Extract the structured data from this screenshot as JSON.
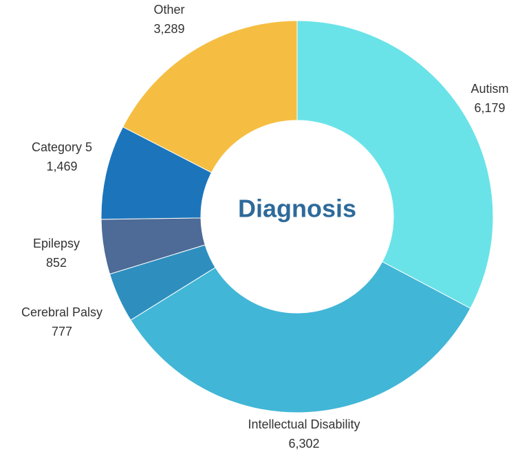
{
  "chart_data": {
    "type": "donut",
    "center_label": "Diagnosis",
    "categories": [
      "Autism",
      "Intellectual Disability",
      "Cerebral Palsy",
      "Epilepsy",
      "Category 5",
      "Other"
    ],
    "values": [
      6179,
      6302,
      777,
      852,
      1469,
      3289
    ],
    "value_labels": [
      "6,179",
      "6,302",
      "777",
      "852",
      "1,469",
      "3,289"
    ],
    "colors": [
      "#6ae3e8",
      "#42b6d6",
      "#2e8fbf",
      "#4d6b96",
      "#1c75bb",
      "#f5be42"
    ]
  }
}
